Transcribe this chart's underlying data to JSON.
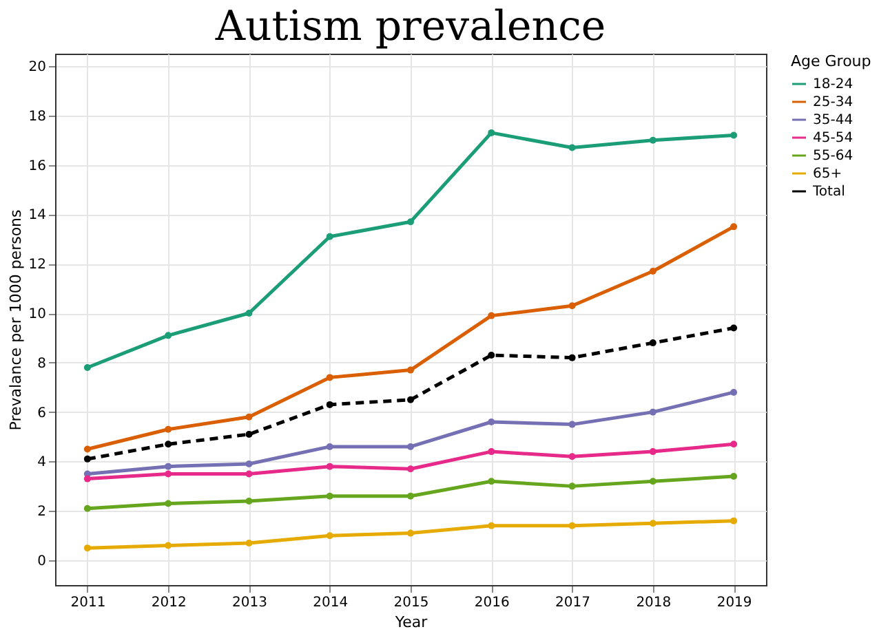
{
  "chart_data": {
    "type": "line",
    "title": "Autism prevalence",
    "xlabel": "Year",
    "ylabel": "Prevalance per 1000 persons",
    "legend_title": "Age Group",
    "x": [
      2011,
      2012,
      2013,
      2014,
      2015,
      2016,
      2017,
      2018,
      2019
    ],
    "series": [
      {
        "name": "18-24",
        "color": "#1b9e77",
        "values": [
          7.8,
          9.1,
          10.0,
          13.1,
          13.7,
          17.3,
          16.7,
          17.0,
          17.2
        ]
      },
      {
        "name": "25-34",
        "color": "#d95f02",
        "values": [
          4.5,
          5.3,
          5.8,
          7.4,
          7.7,
          9.9,
          10.3,
          11.7,
          13.5
        ]
      },
      {
        "name": "35-44",
        "color": "#7570b3",
        "values": [
          3.5,
          3.8,
          3.9,
          4.6,
          4.6,
          5.6,
          5.5,
          6.0,
          6.8
        ]
      },
      {
        "name": "45-54",
        "color": "#e7298a",
        "values": [
          3.3,
          3.5,
          3.5,
          3.8,
          3.7,
          4.4,
          4.2,
          4.4,
          4.7
        ]
      },
      {
        "name": "55-64",
        "color": "#66a61e",
        "values": [
          2.1,
          2.3,
          2.4,
          2.6,
          2.6,
          3.2,
          3.0,
          3.2,
          3.4
        ]
      },
      {
        "name": "65+",
        "color": "#e6ab02",
        "values": [
          0.5,
          0.6,
          0.7,
          1.0,
          1.1,
          1.4,
          1.4,
          1.5,
          1.6
        ]
      },
      {
        "name": "Total",
        "color": "#000000",
        "line_style": "dashed",
        "values": [
          4.1,
          4.7,
          5.1,
          6.3,
          6.5,
          8.3,
          8.2,
          8.8,
          9.4
        ]
      }
    ],
    "xlim": [
      2010.6,
      2019.4
    ],
    "xticks": [
      2011,
      2012,
      2013,
      2014,
      2015,
      2016,
      2017,
      2018,
      2019
    ],
    "ylim": [
      -1,
      20.5
    ],
    "yticks": [
      0,
      2,
      4,
      6,
      8,
      10,
      12,
      14,
      16,
      18,
      20
    ],
    "grid": true,
    "legend": "right",
    "marker": "circle",
    "line_style": "solid"
  }
}
